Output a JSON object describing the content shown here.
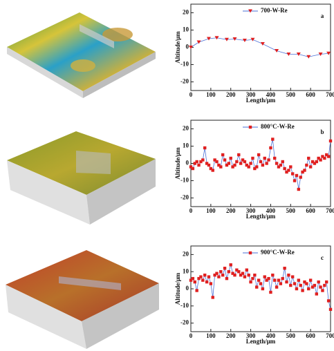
{
  "chart_data": [
    {
      "type": "line",
      "label": "a",
      "xlabel": "Length/μm",
      "ylabel": "Altitude/μm",
      "x": [
        0,
        40,
        90,
        130,
        180,
        220,
        270,
        310,
        360,
        430,
        490,
        540,
        590,
        650,
        690
      ],
      "series": [
        {
          "name": "700-W-Re",
          "color": "#4a6fd6",
          "marker_color": "#e02020",
          "marker": "triangle",
          "values": [
            0,
            3,
            5,
            5.5,
            4.5,
            4.8,
            4,
            4.5,
            2,
            -2,
            -4,
            -4,
            -5.5,
            -4,
            -3.5
          ]
        }
      ],
      "xlim": [
        0,
        700
      ],
      "xticks": [
        0,
        100,
        200,
        300,
        400,
        500,
        600,
        700
      ],
      "ylim": [
        -25,
        25
      ],
      "yticks": [
        -20,
        -10,
        0,
        10,
        20
      ]
    },
    {
      "type": "line",
      "label": "b",
      "xlabel": "Length/μm",
      "ylabel": "Altitude/μm",
      "x": [
        0,
        10,
        20,
        30,
        40,
        50,
        60,
        70,
        80,
        90,
        100,
        110,
        120,
        130,
        140,
        150,
        160,
        170,
        180,
        190,
        200,
        210,
        220,
        230,
        240,
        250,
        260,
        270,
        280,
        290,
        300,
        310,
        320,
        330,
        340,
        350,
        360,
        370,
        380,
        390,
        400,
        410,
        420,
        430,
        440,
        450,
        460,
        470,
        480,
        490,
        500,
        510,
        520,
        530,
        540,
        550,
        560,
        570,
        580,
        590,
        600,
        610,
        620,
        630,
        640,
        650,
        660,
        670,
        680,
        690,
        700
      ],
      "series": [
        {
          "name": "800°C-W-Re",
          "color": "#4a6fd6",
          "marker_color": "#e02020",
          "marker": "square",
          "values": [
            -2,
            -3,
            0,
            1,
            -1,
            1,
            2,
            9,
            0,
            -1,
            -3,
            -4,
            2,
            1,
            -1,
            -2,
            5,
            2,
            -1,
            0,
            3,
            -2,
            -1,
            1,
            5,
            0,
            2,
            1,
            -1,
            -2,
            0,
            3,
            -3,
            -2,
            5,
            1,
            -1,
            3,
            0,
            2,
            9,
            14,
            3,
            0,
            -2,
            -1,
            1,
            -3,
            -5,
            -4,
            -2,
            -6,
            -10,
            -7,
            -15,
            -8,
            -5,
            -4,
            -1,
            3,
            -2,
            1,
            0,
            1,
            3,
            2,
            4,
            3,
            5,
            4,
            13
          ]
        }
      ],
      "xlim": [
        0,
        700
      ],
      "xticks": [
        0,
        100,
        200,
        300,
        400,
        500,
        600,
        700
      ],
      "ylim": [
        -25,
        25
      ],
      "yticks": [
        -20,
        -10,
        0,
        10,
        20
      ]
    },
    {
      "type": "line",
      "label": "c",
      "xlabel": "Length/μm",
      "ylabel": "Altitude/μm",
      "x": [
        0,
        10,
        20,
        30,
        40,
        50,
        60,
        70,
        80,
        90,
        100,
        110,
        120,
        130,
        140,
        150,
        160,
        170,
        180,
        190,
        200,
        210,
        220,
        230,
        240,
        250,
        260,
        270,
        280,
        290,
        300,
        310,
        320,
        330,
        340,
        350,
        360,
        370,
        380,
        390,
        400,
        410,
        420,
        430,
        440,
        450,
        460,
        470,
        480,
        490,
        500,
        510,
        520,
        530,
        540,
        550,
        560,
        570,
        580,
        590,
        600,
        610,
        620,
        630,
        640,
        650,
        660,
        670,
        680,
        690,
        700
      ],
      "series": [
        {
          "name": "900°C-W-Re",
          "color": "#4a6fd6",
          "marker_color": "#e02020",
          "marker": "square",
          "values": [
            5,
            6,
            4,
            -1,
            6,
            7,
            5,
            8,
            4,
            7,
            3,
            -5,
            8,
            9,
            7,
            10,
            8,
            12,
            6,
            10,
            14,
            9,
            8,
            11,
            10,
            8,
            9,
            7,
            11,
            8,
            4,
            6,
            8,
            1,
            5,
            3,
            0,
            7,
            5,
            6,
            -2,
            8,
            5,
            1,
            5,
            3,
            6,
            12,
            4,
            8,
            2,
            7,
            3,
            0,
            5,
            2,
            -1,
            4,
            3,
            0,
            5,
            1,
            2,
            -3,
            4,
            1,
            -1,
            2,
            4,
            -7,
            -12
          ]
        }
      ],
      "xlim": [
        0,
        700
      ],
      "xticks": [
        0,
        100,
        200,
        300,
        400,
        500,
        600,
        700
      ],
      "ylim": [
        -25,
        25
      ],
      "yticks": [
        -20,
        -10,
        0,
        10,
        20
      ]
    }
  ]
}
